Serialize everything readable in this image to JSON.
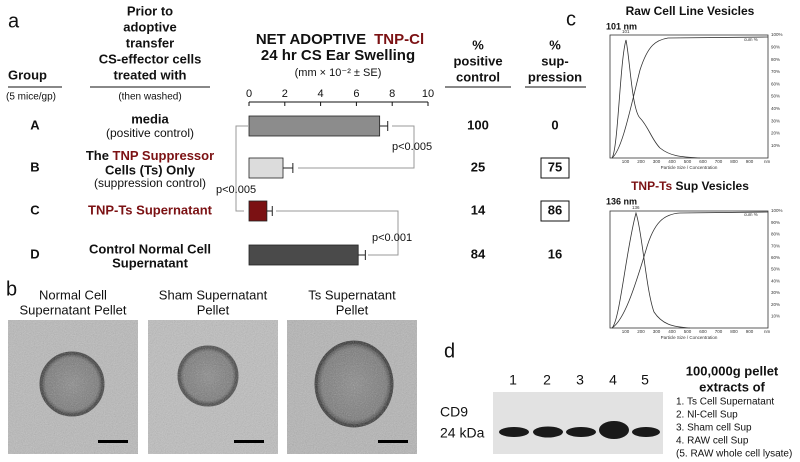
{
  "panel_a": {
    "label": "a",
    "group_header": "Group",
    "group_sub": "(5 mice/gp)",
    "treatment_header": [
      "Prior to",
      "adoptive",
      "transfer",
      "CS-effector cells",
      "treated with"
    ],
    "treatment_sub": "(then washed)",
    "positive_header": [
      "%",
      "positive",
      "control"
    ],
    "suppression_header": [
      "%",
      "sup-",
      "pression"
    ],
    "rows": [
      {
        "treatment": [
          "media",
          "(positive control)"
        ],
        "positive": 100,
        "suppression": 0,
        "boxed": false
      },
      {
        "treatment": [
          "The ",
          "TNP Suppressor",
          "Cells (Ts) Only",
          "(suppression control)"
        ],
        "positive": 25,
        "suppression": 75,
        "boxed": true
      },
      {
        "treatment": [
          "TNP-Ts Supernatant"
        ],
        "positive": 14,
        "suppression": 86,
        "boxed": true
      },
      {
        "treatment": [
          "Control Normal Cell",
          "Supernatant"
        ],
        "positive": 84,
        "suppression": 16,
        "boxed": false
      }
    ]
  },
  "chart_data": {
    "type": "bar",
    "orientation": "horizontal",
    "title": "NET ADOPTIVE",
    "title_highlight": "TNP-Cl",
    "highlight_color": "#7b1113",
    "subtitle": "24 hr CS Ear Swelling",
    "axis_label": "(mm × 10⁻² ± SE)",
    "categories": [
      "A",
      "B",
      "C",
      "D"
    ],
    "values": [
      7.3,
      1.9,
      1.0,
      6.1
    ],
    "errors": [
      0.45,
      0.55,
      0.3,
      0.4
    ],
    "colors": [
      "#8c8c8c",
      "#dcdcdc",
      "#7b1113",
      "#4a4a4a"
    ],
    "xlim": [
      0,
      10
    ],
    "xticks": [
      0,
      2,
      4,
      6,
      8,
      10
    ],
    "annotations": [
      "p<0.005",
      "p<0.005",
      "p<0.001"
    ]
  },
  "panel_b": {
    "label": "b",
    "images": [
      [
        "Normal Cell",
        "Supernatant Pellet"
      ],
      [
        "Sham Supernatant",
        "Pellet"
      ],
      [
        "Ts Supernatant",
        "Pellet"
      ]
    ]
  },
  "panel_c": {
    "label": "c",
    "plots": [
      {
        "title": [
          "Raw Cell Line Vesicles"
        ],
        "peak": "101 nm",
        "peak_tick": "101"
      },
      {
        "title": [
          "TNP-Ts",
          " Sup Vesicles"
        ],
        "peak": "136 nm",
        "peak_tick": "136"
      }
    ],
    "xticks": [
      "100",
      "200",
      "300",
      "400",
      "500",
      "600",
      "700",
      "800",
      "900"
    ],
    "x_unit": "nm",
    "yticks": [
      "100%",
      "90%",
      "80%",
      "70%",
      "60%",
      "50%",
      "40%",
      "30%",
      "20%",
      "10%"
    ],
    "x_label": "Particle Size / Concentration",
    "cum_label": "cum %"
  },
  "panel_d": {
    "label": "d",
    "lanes": [
      "1",
      "2",
      "3",
      "4",
      "5"
    ],
    "marker": "CD9",
    "weight": "24 kDa",
    "legend_title": [
      "100,000g pellet",
      "extracts of"
    ],
    "legend": [
      "1. Ts Cell Supernatant",
      "2. Nl-Cell Sup",
      "3. Sham cell Sup",
      "4. RAW cell Sup",
      "(5. RAW whole cell lysate)"
    ]
  }
}
